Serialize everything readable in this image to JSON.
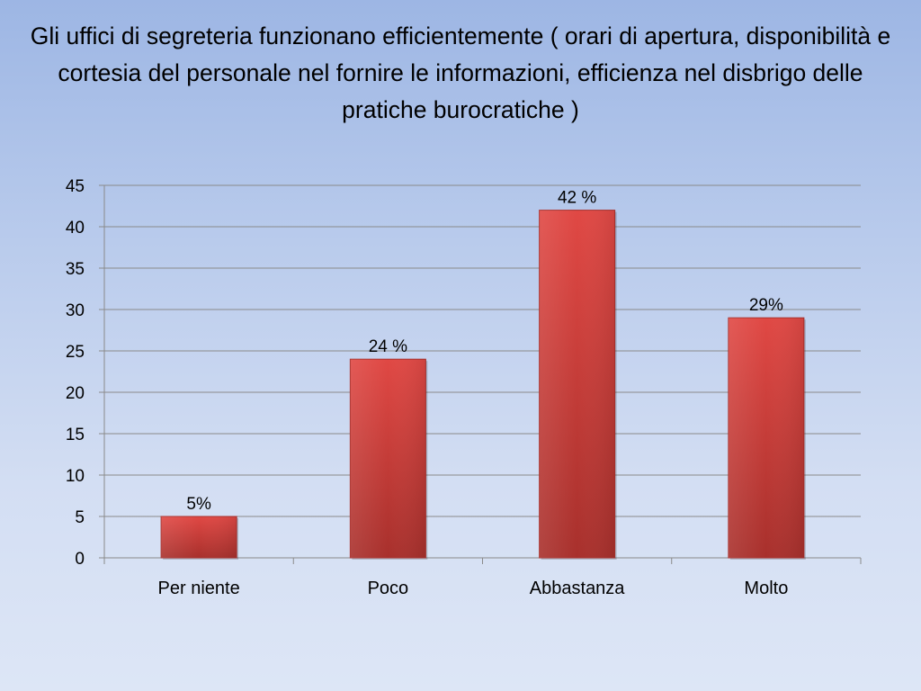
{
  "chart_data": {
    "type": "bar",
    "title": "Gli uffici di segreteria funzionano efficientemente ( orari di apertura, disponibilità e cortesia del personale nel fornire le informazioni, efficienza nel disbrigo delle pratiche burocratiche )",
    "categories": [
      "Per niente",
      "Poco",
      "Abbastanza",
      "Molto"
    ],
    "values": [
      5,
      24,
      42,
      29
    ],
    "data_labels": [
      "5%",
      "24 %",
      "42 %",
      "29%"
    ],
    "xlabel": "",
    "ylabel": "",
    "ylim": [
      0,
      45
    ],
    "yticks": [
      0,
      5,
      10,
      15,
      20,
      25,
      30,
      35,
      40,
      45
    ],
    "grid": true,
    "legend": "none",
    "colors": {
      "bar": "#d6403c",
      "bar_dark": "#a9302c",
      "grid": "#8a8a8a"
    }
  }
}
